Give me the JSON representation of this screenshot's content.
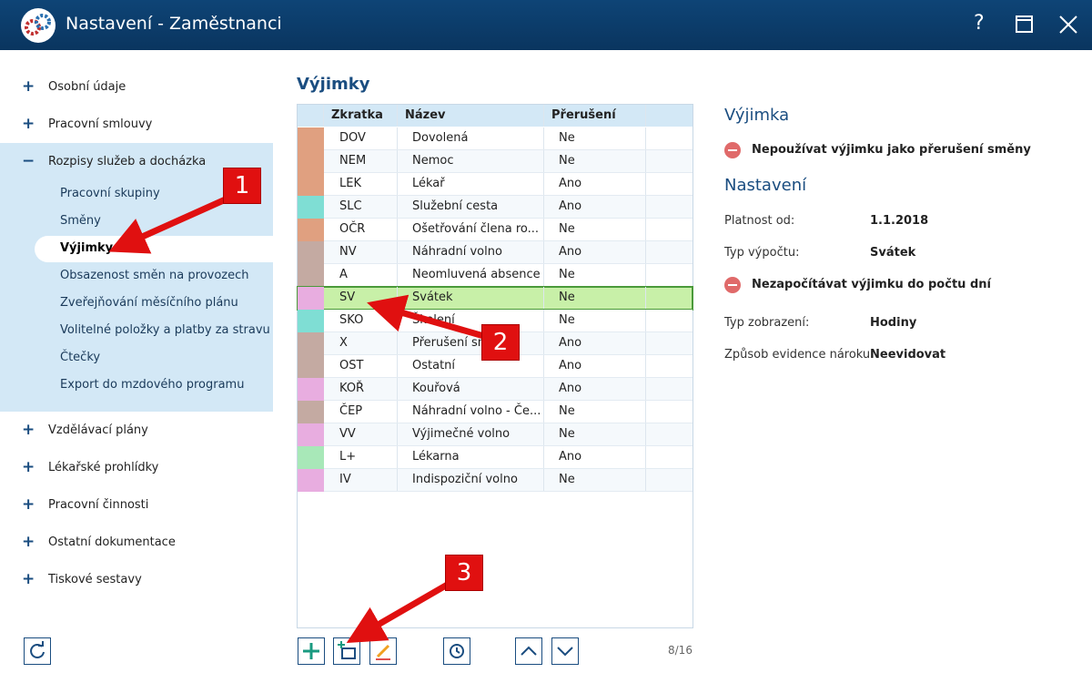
{
  "window": {
    "title": "Nastavení - Zaměstnanci",
    "help": "?"
  },
  "sidebar": {
    "items": [
      {
        "label": "Osobní údaje"
      },
      {
        "label": "Pracovní smlouvy"
      },
      {
        "label": "Rozpisy služeb a docházka",
        "expanded": true,
        "children": [
          {
            "label": "Pracovní skupiny"
          },
          {
            "label": "Směny"
          },
          {
            "label": "Výjimky",
            "selected": true
          },
          {
            "label": "Obsazenost směn na provozech"
          },
          {
            "label": "Zveřejňování měsíčního plánu"
          },
          {
            "label": "Volitelné položky a platby za stravu"
          },
          {
            "label": "Čtečky"
          },
          {
            "label": "Export do mzdového programu"
          }
        ]
      },
      {
        "label": "Vzdělávací plány"
      },
      {
        "label": "Lékařské prohlídky"
      },
      {
        "label": "Pracovní činnosti"
      },
      {
        "label": "Ostatní dokumentace"
      },
      {
        "label": "Tiskové sestavy"
      }
    ]
  },
  "table": {
    "title": "Výjimky",
    "columns": [
      "Zkratka",
      "Název",
      "Přerušení"
    ],
    "counter": "8/16",
    "rows": [
      {
        "code": "DOV",
        "name": "Dovolená",
        "interrupt": "Ne",
        "color": "#e0a080"
      },
      {
        "code": "NEM",
        "name": "Nemoc",
        "interrupt": "Ne",
        "color": "#e0a080"
      },
      {
        "code": "LEK",
        "name": "Lékař",
        "interrupt": "Ano",
        "color": "#e0a080"
      },
      {
        "code": "SLC",
        "name": "Služební cesta",
        "interrupt": "Ano",
        "color": "#7fded4"
      },
      {
        "code": "OČR",
        "name": "Ošetřování člena ro...",
        "interrupt": "Ne",
        "color": "#e0a080"
      },
      {
        "code": "NV",
        "name": "Náhradní volno",
        "interrupt": "Ano",
        "color": "#c4aaa2"
      },
      {
        "code": "A",
        "name": "Neomluvená absence",
        "interrupt": "Ne",
        "color": "#c4aaa2"
      },
      {
        "code": "SV",
        "name": "Svátek",
        "interrupt": "Ne",
        "color": "#e8ade0",
        "selected": true
      },
      {
        "code": "SKO",
        "name": "Školení",
        "interrupt": "Ne",
        "color": "#7fded4"
      },
      {
        "code": "X",
        "name": "Přerušení směny",
        "interrupt": "Ano",
        "color": "#c4aaa2"
      },
      {
        "code": "OST",
        "name": "Ostatní",
        "interrupt": "Ano",
        "color": "#c4aaa2"
      },
      {
        "code": "KOŘ",
        "name": "Kouřová",
        "interrupt": "Ano",
        "color": "#e8ade0"
      },
      {
        "code": "ČEP",
        "name": "Náhradní volno - Če...",
        "interrupt": "Ne",
        "color": "#c4aaa2"
      },
      {
        "code": "VV",
        "name": "Výjimečné volno",
        "interrupt": "Ne",
        "color": "#e8ade0"
      },
      {
        "code": "L+",
        "name": "Lékarna",
        "interrupt": "Ano",
        "color": "#a8e8b8"
      },
      {
        "code": "IV",
        "name": "Indispoziční volno",
        "interrupt": "Ne",
        "color": "#e8ade0"
      }
    ]
  },
  "detail": {
    "heading": "Výjimka",
    "items": [
      {
        "flag": "Nepoužívat výjimku jako přerušení směny"
      },
      {
        "section": "Nastavení"
      },
      {
        "label": "Platnost od:",
        "value": "1.1.2018"
      },
      {
        "label": "Typ výpočtu:",
        "value": "Svátek"
      },
      {
        "flag": "Nezapočítávat výjimku do počtu dní"
      },
      {
        "label": "Typ zobrazení:",
        "value": "Hodiny"
      },
      {
        "label": "Způsob evidence nároku:",
        "value": "Neevidovat"
      }
    ]
  },
  "annotations": [
    "1",
    "2",
    "3"
  ]
}
